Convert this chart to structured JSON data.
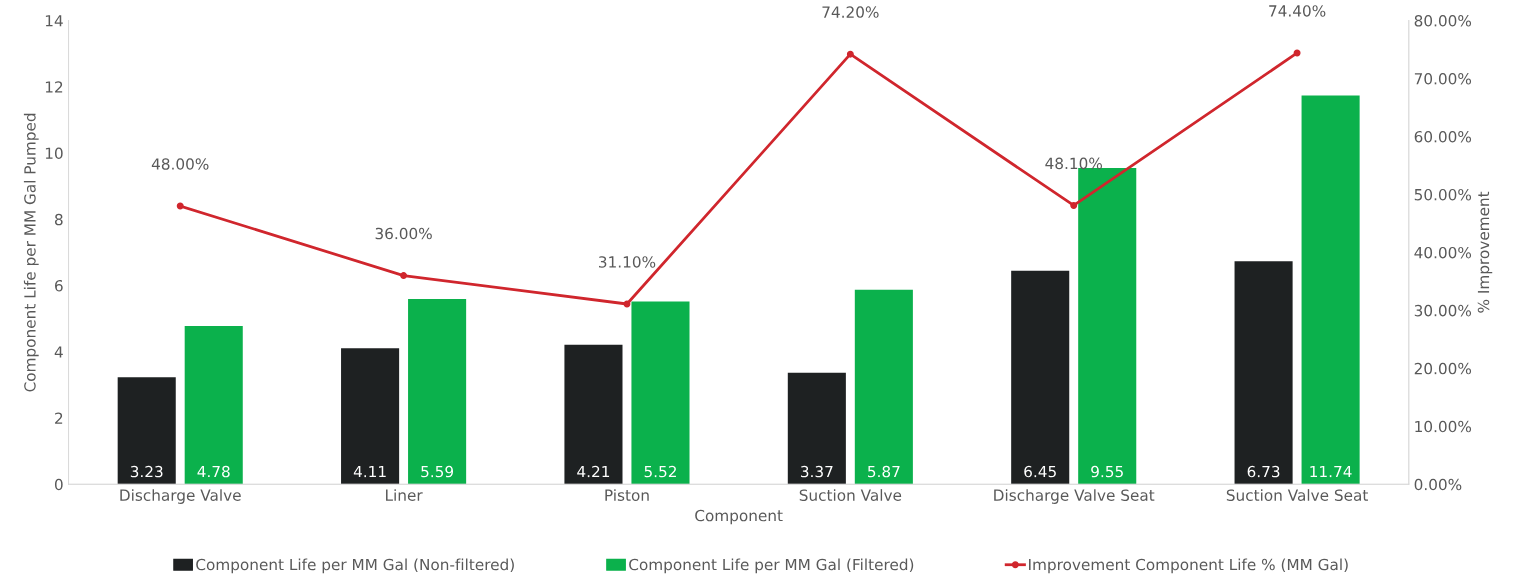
{
  "chart_data": {
    "type": "bar",
    "xlabel": "Component",
    "ylabel": "Component Life per MM Gal Pumped",
    "y2label": "% Improvement",
    "categories": [
      "Discharge Valve",
      "Liner",
      "Piston",
      "Suction Valve",
      "Discharge Valve Seat",
      "Suction Valve Seat"
    ],
    "series": [
      {
        "name": "Component Life per MM Gal (Non-filtered)",
        "color": "#1e2122",
        "values": [
          3.23,
          4.11,
          4.21,
          3.37,
          6.45,
          6.73
        ],
        "value_labels": [
          "3.23",
          "4.11",
          "4.21",
          "3.37",
          "6.45",
          "6.73"
        ]
      },
      {
        "name": "Component Life per MM Gal (Filtered)",
        "color": "#0bb14c",
        "values": [
          4.78,
          5.59,
          5.52,
          5.87,
          9.55,
          11.74
        ],
        "value_labels": [
          "4.78",
          "5.59",
          "5.52",
          "5.87",
          "9.55",
          "11.74"
        ]
      },
      {
        "name": "Improvement Component Life % (MM Gal)",
        "type": "line",
        "axis": "y2",
        "color": "#d0262d",
        "marker": "circle",
        "values": [
          48.0,
          36.0,
          31.1,
          74.2,
          48.1,
          74.4
        ],
        "value_labels": [
          "48.00%",
          "36.00%",
          "31.10%",
          "74.20%",
          "48.10%",
          "74.40%"
        ]
      }
    ],
    "ylim": [
      0,
      14
    ],
    "yticks": [
      0,
      2,
      4,
      6,
      8,
      10,
      12,
      14
    ],
    "y2lim": [
      0,
      80
    ],
    "y2ticks": [
      {
        "value": 0,
        "label": "0.00%"
      },
      {
        "value": 10,
        "label": "10.00%"
      },
      {
        "value": 20,
        "label": "20.00%"
      },
      {
        "value": 30,
        "label": "30.00%"
      },
      {
        "value": 40,
        "label": "40.00%"
      },
      {
        "value": 50,
        "label": "50.00%"
      },
      {
        "value": 60,
        "label": "60.00%"
      },
      {
        "value": 70,
        "label": "70.00%"
      },
      {
        "value": 80,
        "label": "80.00%"
      }
    ],
    "grid": false,
    "legend": "bottom"
  }
}
